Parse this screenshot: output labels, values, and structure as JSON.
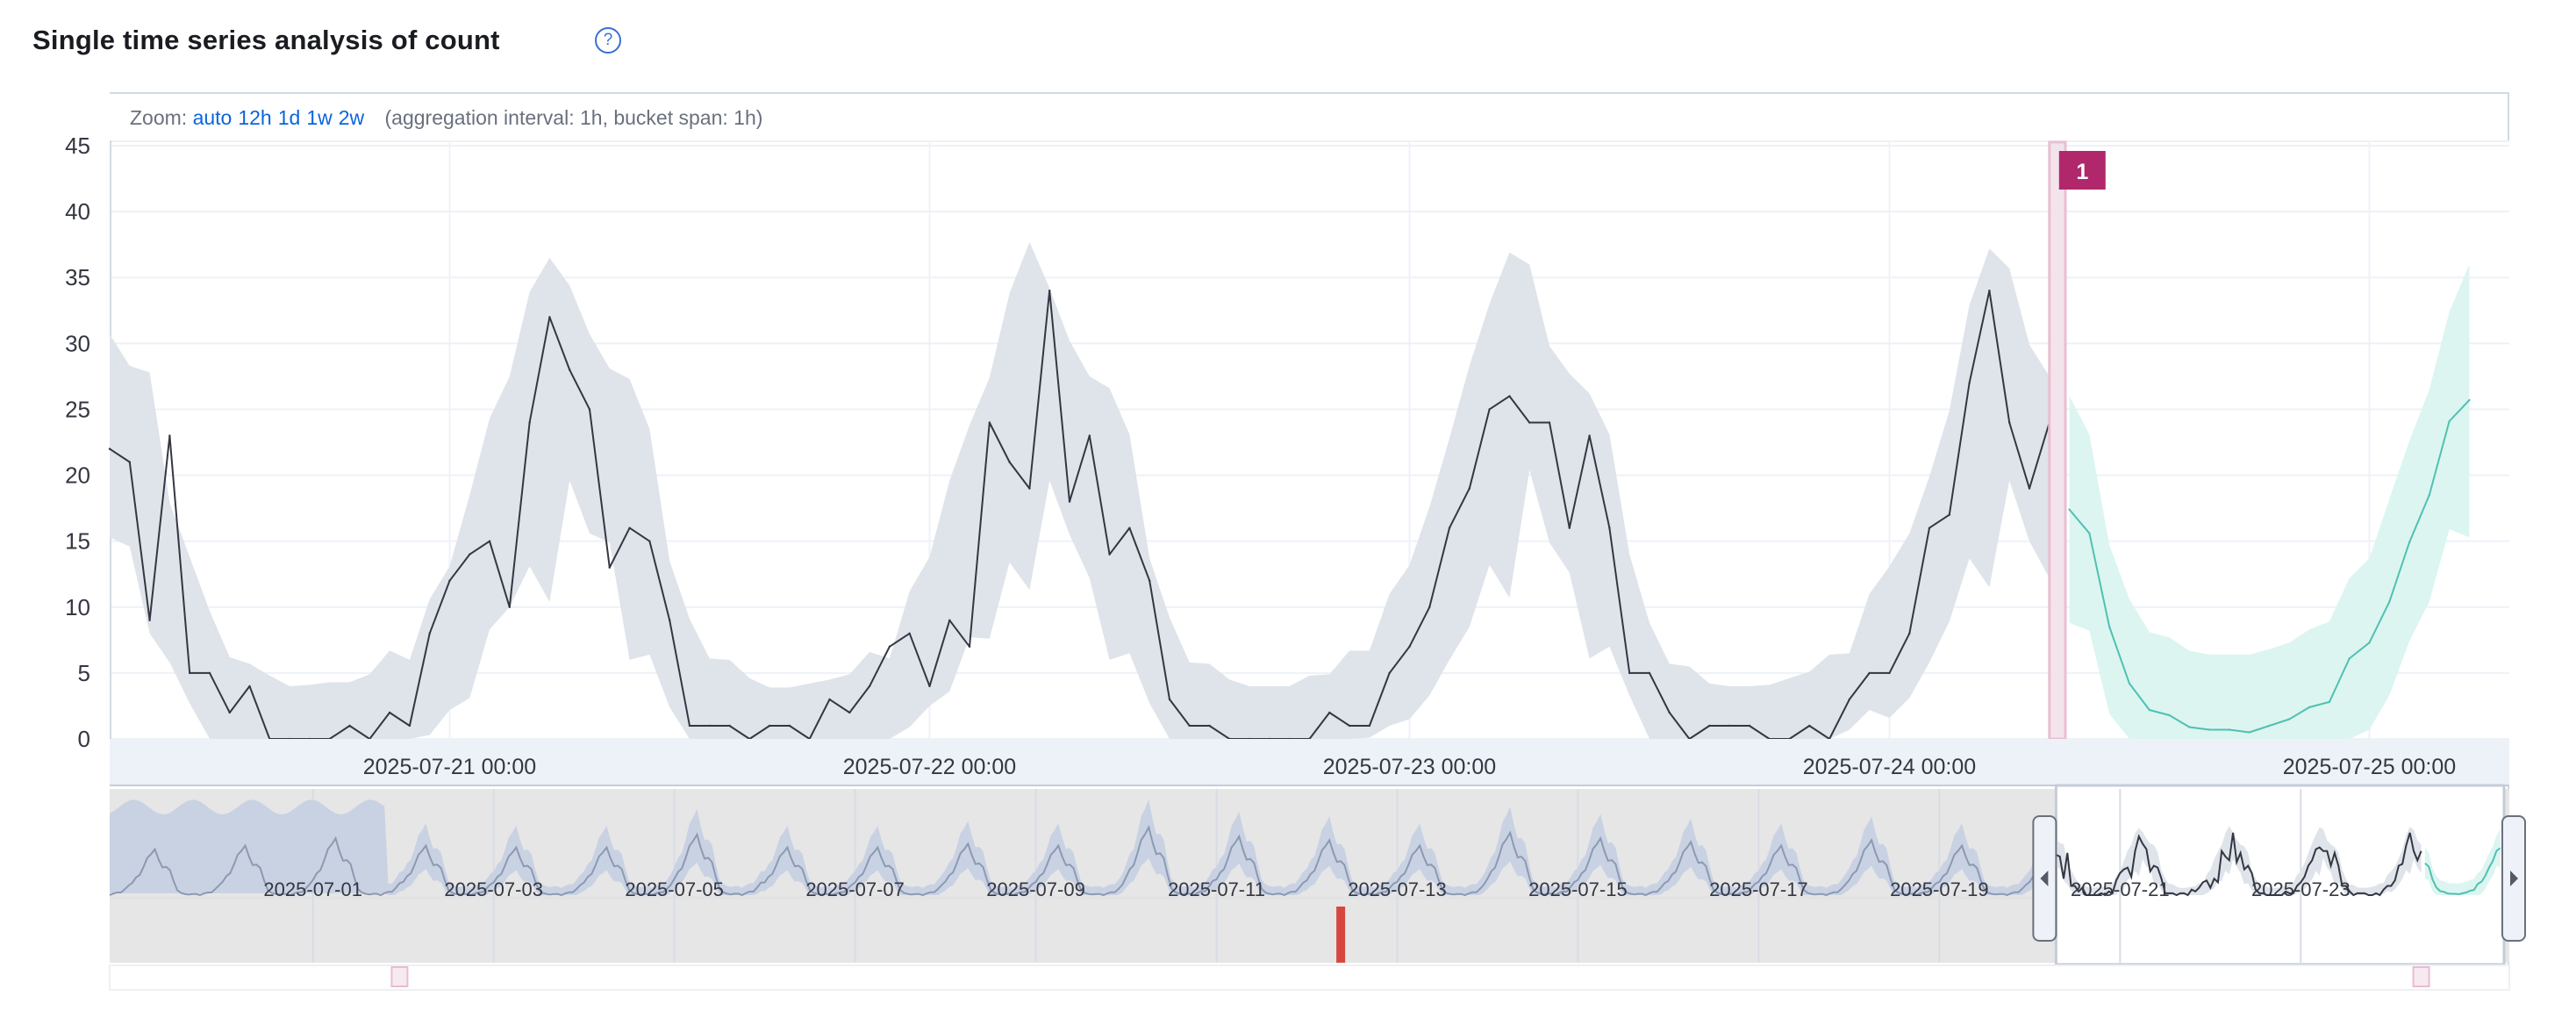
{
  "title": "Single time series analysis of count",
  "help_icon": "question-circle-icon",
  "zoom": {
    "label": "Zoom:",
    "options": [
      "auto",
      "12h",
      "1d",
      "1w",
      "2w"
    ],
    "aggregation_text": "(aggregation interval: 1h, bucket span: 1h)"
  },
  "colors": {
    "actual_line": "#343741",
    "model_bounds": "#dfe3ea",
    "forecast_line": "#4fc1b1",
    "forecast_bounds": "#dcf5f1",
    "annotation": "#b0286b",
    "anomaly_marker": "#d6483f",
    "link": "#0b64dd"
  },
  "chart_data": {
    "type": "line",
    "title": "",
    "xlabel": "",
    "ylabel": "",
    "ylim": [
      0,
      45
    ],
    "yticks": [
      0,
      5,
      10,
      15,
      20,
      25,
      30,
      35,
      40,
      45
    ],
    "xrange": [
      "2025-07-20 07:00",
      "2025-07-25 06:00"
    ],
    "xticks": [
      "2025-07-21 00:00",
      "2025-07-22 00:00",
      "2025-07-23 00:00",
      "2025-07-24 00:00",
      "2025-07-25 00:00"
    ],
    "grid": true,
    "actual": {
      "start": "2025-07-20 07:00",
      "interval": "1h",
      "values": [
        22,
        21,
        9,
        23,
        5,
        5,
        2,
        4,
        0,
        0,
        0,
        0,
        1,
        0,
        2,
        1,
        8,
        12,
        14,
        15,
        10,
        24,
        32,
        28,
        25,
        13,
        16,
        15,
        9,
        1,
        1,
        1,
        0,
        1,
        1,
        0,
        3,
        2,
        4,
        7,
        8,
        4,
        9,
        7,
        24,
        21,
        19,
        34,
        18,
        23,
        14,
        16,
        12,
        3,
        1,
        1,
        0,
        0,
        0,
        0,
        0,
        2,
        1,
        1,
        5,
        7,
        10,
        16,
        19,
        25,
        26,
        24,
        24,
        16,
        23,
        16,
        5,
        5,
        2,
        0,
        1,
        1,
        1,
        0,
        0,
        1,
        0,
        3,
        5,
        5,
        8,
        16,
        17,
        27,
        34,
        24,
        19,
        24
      ],
      "upper": [
        30.7,
        28.3,
        27.8,
        17.9,
        13.8,
        9.7,
        6.2,
        5.7,
        4.8,
        4.0,
        4.1,
        4.3,
        4.3,
        4.9,
        6.7,
        6.0,
        10.6,
        13.1,
        18.5,
        24.3,
        27.5,
        33.9,
        36.5,
        34.4,
        30.7,
        28.1,
        27.3,
        23.5,
        13.5,
        9.1,
        6.1,
        6.0,
        4.6,
        3.9,
        3.9,
        4.2,
        4.5,
        4.9,
        6.6,
        6.1,
        11.2,
        13.8,
        19.6,
        23.8,
        27.4,
        33.8,
        37.7,
        34.2,
        30.2,
        27.5,
        26.6,
        23.1,
        13.7,
        9.2,
        5.8,
        5.7,
        4.5,
        4.0,
        4.0,
        4.0,
        4.8,
        4.9,
        6.7,
        6.7,
        11.0,
        13.2,
        17.6,
        22.8,
        28.3,
        33.0,
        36.9,
        36.0,
        29.8,
        27.7,
        26.2,
        23.1,
        14.0,
        8.8,
        5.7,
        5.5,
        4.2,
        4.0,
        4.0,
        4.1,
        4.6,
        5.1,
        6.4,
        6.5,
        11.0,
        13.1,
        15.6,
        19.9,
        24.9,
        32.9,
        37.2,
        35.7,
        29.9,
        27.5
      ],
      "lower": [
        15.3,
        14.6,
        8.0,
        5.8,
        2.7,
        0,
        0,
        0,
        0,
        0,
        0,
        0,
        0,
        0,
        0,
        0,
        0.3,
        2.2,
        3.1,
        8.3,
        10.0,
        13.1,
        10.4,
        19.6,
        15.6,
        14.9,
        6.0,
        6.4,
        2.4,
        0,
        0,
        0,
        0,
        0,
        0,
        0,
        0,
        0,
        0,
        0,
        0.9,
        2.5,
        3.6,
        7.7,
        7.6,
        13.4,
        11.3,
        19.6,
        15.5,
        12.2,
        6.0,
        6.5,
        2.7,
        0,
        0,
        0,
        0,
        0,
        0,
        0,
        0,
        0,
        0,
        0.1,
        1.0,
        1.5,
        3.3,
        6.0,
        8.5,
        13.2,
        10.7,
        20.4,
        14.9,
        12.6,
        6.1,
        7.0,
        3.3,
        0,
        0,
        0,
        0,
        0,
        0,
        0,
        0,
        0,
        0,
        0.7,
        2.2,
        1.6,
        3.1,
        5.8,
        8.9,
        13.7,
        11.5,
        19.6,
        15.0,
        12.2
      ]
    },
    "forecast": {
      "start": "2025-07-24 09:00",
      "interval": "1h",
      "values": [
        17.4,
        15.6,
        8.5,
        4.2,
        2.2,
        1.8,
        0.9,
        0.7,
        0.7,
        0.5,
        1.0,
        1.5,
        2.4,
        2.8,
        6.1,
        7.3,
        10.4,
        14.9,
        18.5,
        24.1,
        25.7
      ],
      "upper": [
        26.0,
        23.1,
        14.7,
        10.6,
        8.1,
        7.7,
        6.7,
        6.4,
        6.4,
        6.4,
        6.8,
        7.3,
        8.3,
        8.9,
        12.2,
        13.7,
        18.2,
        22.6,
        26.5,
        32.4,
        36.0
      ],
      "lower": [
        8.8,
        8.2,
        1.9,
        0,
        0,
        0,
        0,
        0,
        0,
        0,
        0,
        0,
        0,
        0,
        0,
        0.7,
        3.3,
        7.4,
        10.4,
        15.9,
        15.3
      ]
    },
    "annotations": [
      {
        "label": "1",
        "start": "2025-07-24 08:00",
        "end": "2025-07-24 09:00"
      }
    ]
  },
  "context": {
    "xrange": [
      "2025-06-28 18:00",
      "2025-07-25 06:00"
    ],
    "xticks": [
      "2025-07-01",
      "2025-07-03",
      "2025-07-05",
      "2025-07-07",
      "2025-07-09",
      "2025-07-11",
      "2025-07-13",
      "2025-07-15",
      "2025-07-17",
      "2025-07-19",
      "2025-07-21",
      "2025-07-23"
    ],
    "ylim": [
      0,
      55
    ],
    "daily_peaks": {
      "start": "2025-06-29",
      "values": [
        25,
        27,
        31,
        27,
        26,
        26,
        33,
        26,
        26,
        28,
        27,
        37,
        32,
        30,
        27,
        34,
        31,
        29,
        27,
        30,
        27
      ]
    },
    "wide_bounds_until": "2025-07-01 20:00",
    "selection": [
      "2025-07-20 07:00",
      "2025-07-25 06:00"
    ],
    "anomaly_markers": [
      "2025-07-12 09:00"
    ],
    "annotation_markers": [
      "2025-07-01 23:00",
      "2025-07-24 08:00"
    ],
    "handle_icons": [
      "caret-left-icon",
      "caret-right-icon"
    ]
  }
}
